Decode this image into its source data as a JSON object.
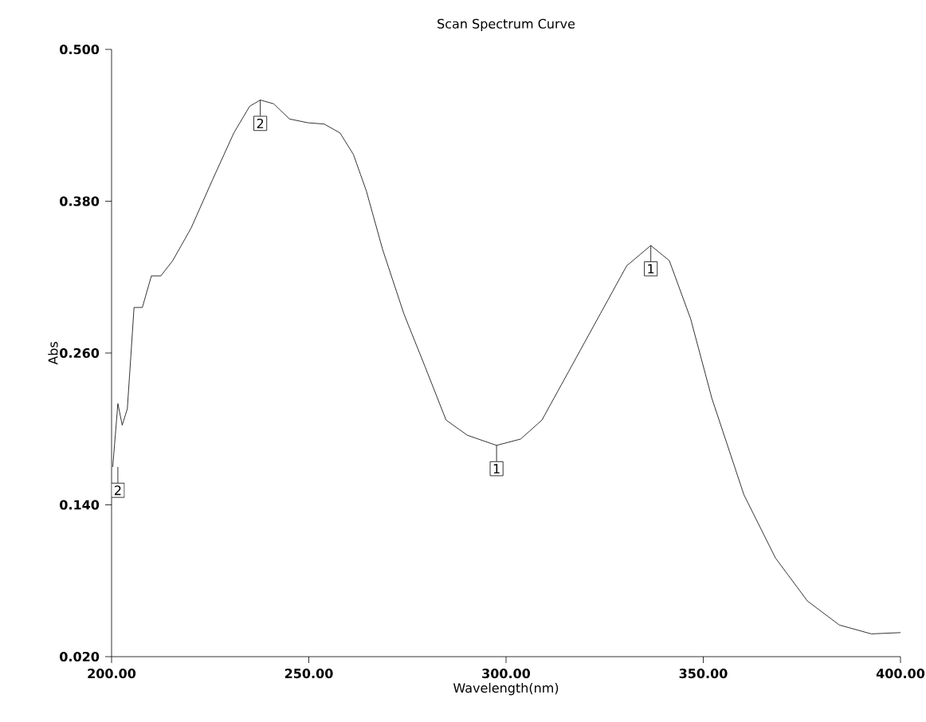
{
  "chart_data": {
    "type": "line",
    "title": "Scan Spectrum Curve",
    "xlabel": "Wavelength(nm)",
    "ylabel": "Abs",
    "x": [
      200.3,
      201.6,
      202.7,
      204.0,
      205.7,
      207.8,
      210.1,
      212.5,
      215.5,
      220.2,
      225.6,
      231.0,
      235.0,
      237.7,
      241.1,
      245.1,
      249.8,
      253.9,
      257.9,
      261.3,
      264.6,
      268.7,
      274.1,
      279.5,
      284.8,
      290.2,
      297.6,
      303.7,
      309.1,
      315.8,
      323.9,
      330.6,
      336.7,
      341.4,
      346.8,
      352.2,
      360.3,
      368.3,
      376.4,
      384.5,
      392.6,
      400.0
    ],
    "series": [
      {
        "color": "#000000",
        "values": [
          0.17,
          0.22,
          0.203,
          0.216,
          0.296,
          0.296,
          0.321,
          0.321,
          0.333,
          0.359,
          0.397,
          0.434,
          0.455,
          0.46,
          0.457,
          0.445,
          0.442,
          0.441,
          0.434,
          0.417,
          0.388,
          0.342,
          0.291,
          0.249,
          0.207,
          0.195,
          0.187,
          0.192,
          0.207,
          0.245,
          0.291,
          0.329,
          0.345,
          0.333,
          0.287,
          0.224,
          0.148,
          0.098,
          0.064,
          0.045,
          0.038,
          0.039
        ]
      }
    ],
    "xlim": [
      200,
      400
    ],
    "ylim": [
      0.02,
      0.5
    ],
    "xticks": [
      {
        "value": 200,
        "label": "200.00"
      },
      {
        "value": 250,
        "label": "250.00"
      },
      {
        "value": 300,
        "label": "300.00"
      },
      {
        "value": 350,
        "label": "350.00"
      },
      {
        "value": 400,
        "label": "400.00"
      }
    ],
    "yticks": [
      {
        "value": 0.02,
        "label": "0.020"
      },
      {
        "value": 0.14,
        "label": "0.140"
      },
      {
        "value": 0.26,
        "label": "0.260"
      },
      {
        "value": 0.38,
        "label": "0.380"
      },
      {
        "value": 0.5,
        "label": "0.500"
      }
    ],
    "grid": false,
    "marker": "none",
    "line_style": "solid",
    "annotations": [
      {
        "text": "2",
        "x": 201.6,
        "y": 0.17
      },
      {
        "text": "2",
        "x": 237.7,
        "y": 0.46
      },
      {
        "text": "1",
        "x": 297.6,
        "y": 0.187
      },
      {
        "text": "1",
        "x": 336.7,
        "y": 0.345
      }
    ]
  }
}
